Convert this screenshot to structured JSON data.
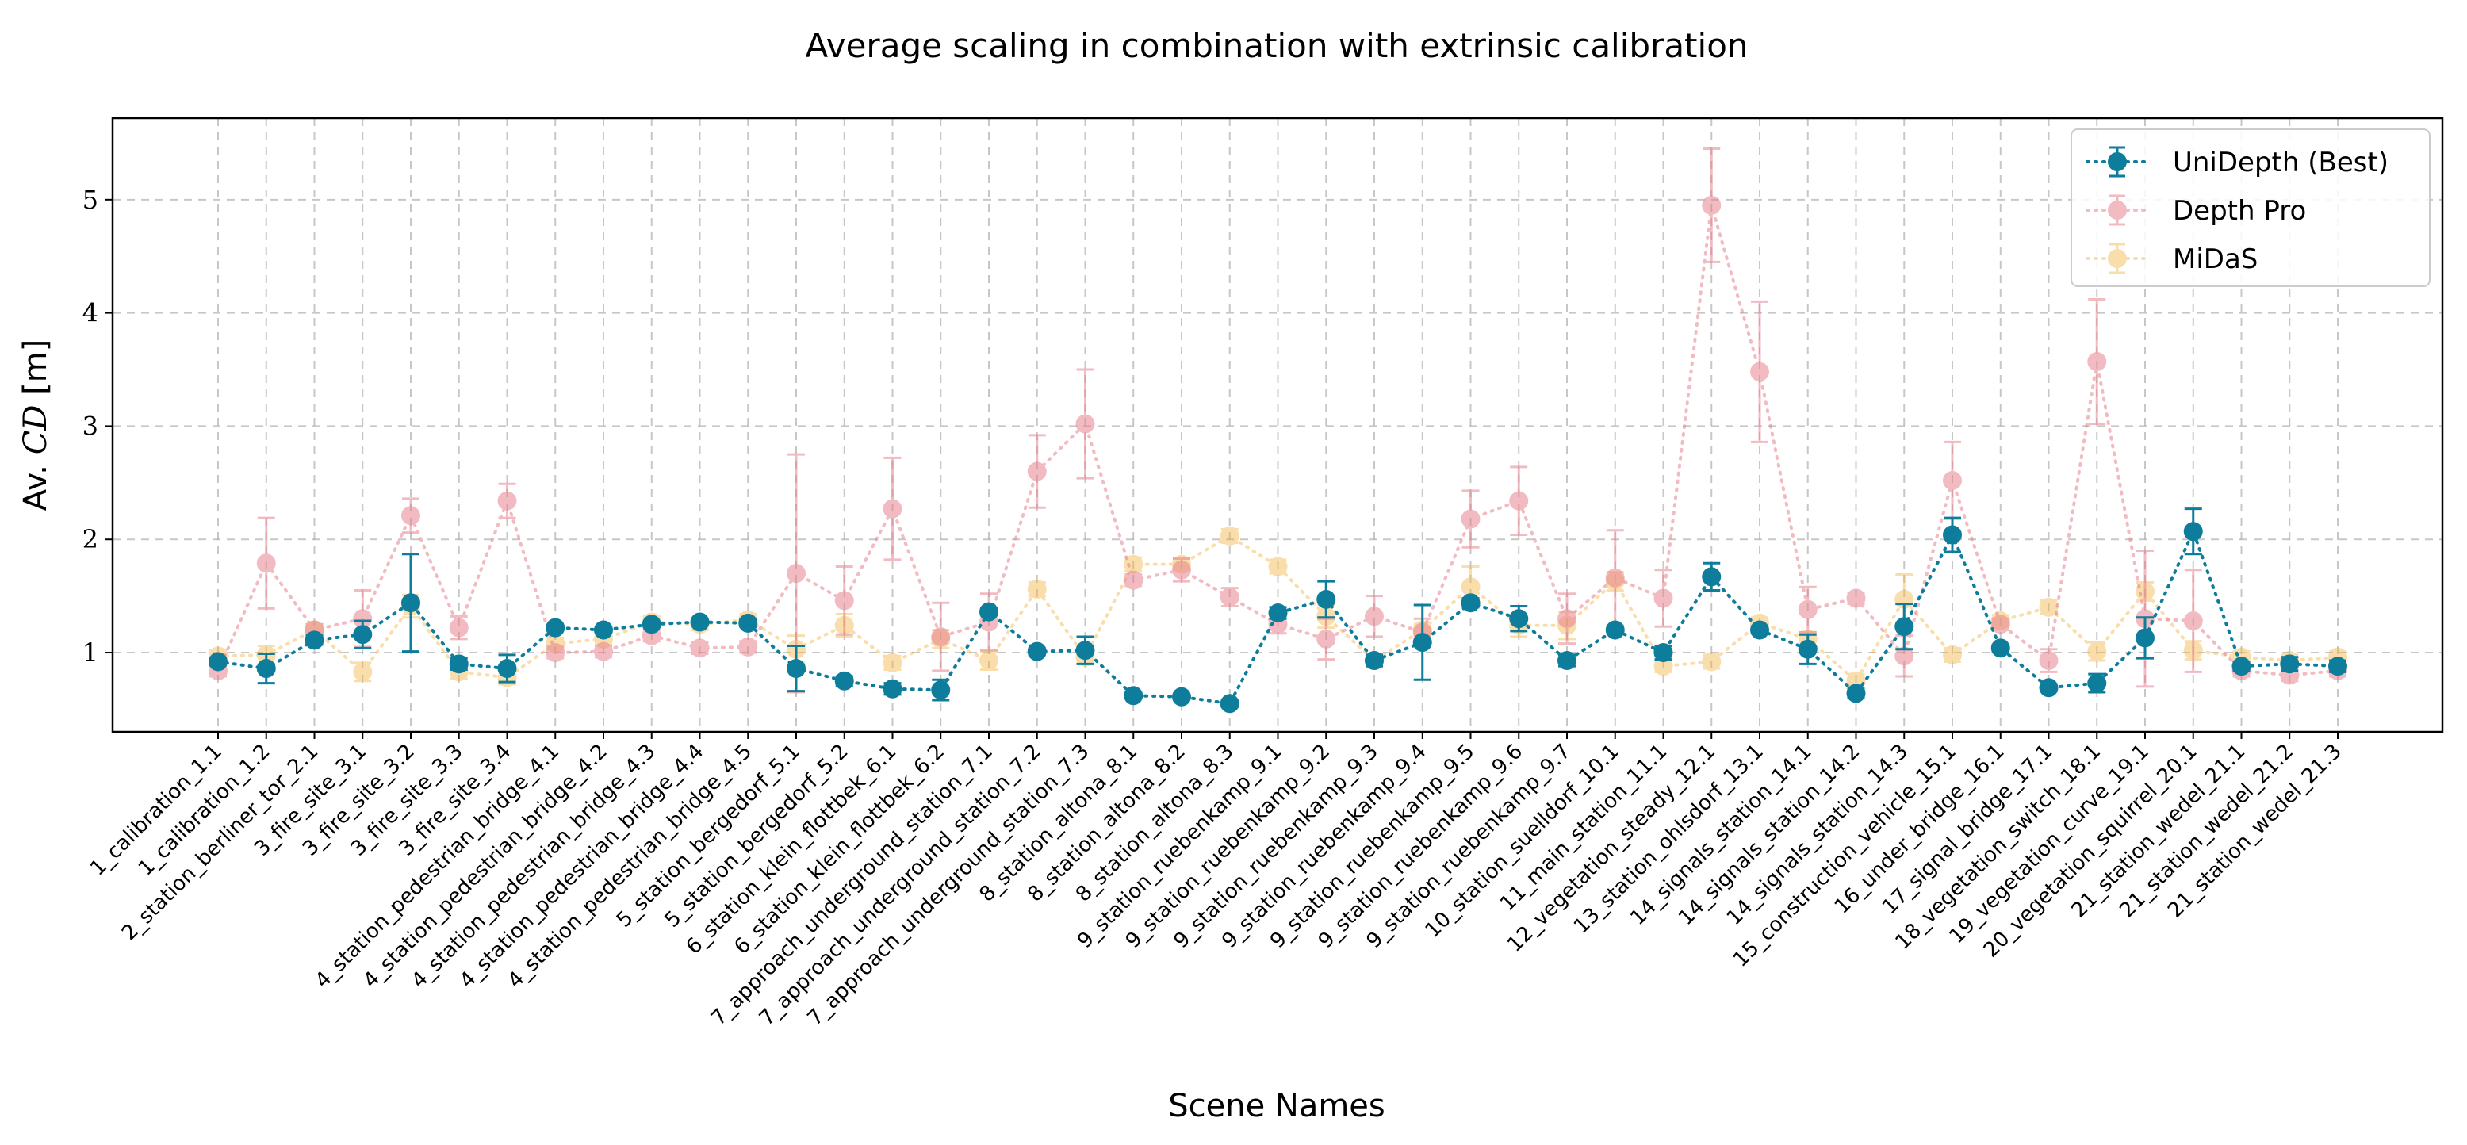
{
  "chart_data": {
    "type": "line",
    "title": "Average scaling in combination with extrinsic calibration",
    "xlabel": "Scene Names",
    "ylabel_prefix": "Av. ",
    "ylabel_var": "CD",
    "ylabel_suffix": " [m]",
    "ylim": [
      0.3,
      5.72
    ],
    "yticks": [
      1,
      2,
      3,
      4,
      5
    ],
    "grid": true,
    "legend_position": "top-right",
    "categories": [
      "1_calibration_1.1",
      "1_calibration_1.2",
      "2_station_berliner_tor_2.1",
      "3_fire_site_3.1",
      "3_fire_site_3.2",
      "3_fire_site_3.3",
      "3_fire_site_3.4",
      "4_station_pedestrian_bridge_4.1",
      "4_station_pedestrian_bridge_4.2",
      "4_station_pedestrian_bridge_4.3",
      "4_station_pedestrian_bridge_4.4",
      "4_station_pedestrian_bridge_4.5",
      "5_station_bergedorf_5.1",
      "5_station_bergedorf_5.2",
      "6_station_klein_flottbek_6.1",
      "6_station_klein_flottbek_6.2",
      "7_approach_underground_station_7.1",
      "7_approach_underground_station_7.2",
      "7_approach_underground_station_7.3",
      "8_station_altona_8.1",
      "8_station_altona_8.2",
      "8_station_altona_8.3",
      "9_station_ruebenkamp_9.1",
      "9_station_ruebenkamp_9.2",
      "9_station_ruebenkamp_9.3",
      "9_station_ruebenkamp_9.4",
      "9_station_ruebenkamp_9.5",
      "9_station_ruebenkamp_9.6",
      "9_station_ruebenkamp_9.7",
      "10_station_suelldorf_10.1",
      "11_main_station_11.1",
      "12_vegetation_steady_12.1",
      "13_station_ohlsdorf_13.1",
      "14_signals_station_14.1",
      "14_signals_station_14.2",
      "14_signals_station_14.3",
      "15_construction_vehicle_15.1",
      "16_under_bridge_16.1",
      "17_signal_bridge_17.1",
      "18_vegetation_switch_18.1",
      "19_vegetation_curve_19.1",
      "20_vegetation_squirrel_20.1",
      "21_station_wedel_21.1",
      "21_station_wedel_21.2",
      "21_station_wedel_21.3"
    ],
    "series": [
      {
        "name": "UniDepth (Best)",
        "color": "#0e7d9b",
        "opacity": 1.0,
        "values": [
          0.92,
          0.86,
          1.11,
          1.16,
          1.44,
          0.9,
          0.86,
          1.22,
          1.2,
          1.25,
          1.27,
          1.26,
          0.86,
          0.75,
          0.68,
          0.67,
          1.36,
          1.01,
          1.02,
          0.62,
          0.61,
          0.55,
          1.35,
          1.47,
          0.93,
          1.09,
          1.44,
          1.3,
          0.93,
          1.2,
          1.0,
          1.67,
          1.2,
          1.03,
          0.64,
          1.23,
          2.04,
          1.04,
          0.69,
          0.73,
          1.13,
          2.07,
          0.88,
          0.9,
          0.88
        ],
        "errors": [
          0.03,
          0.13,
          0.04,
          0.12,
          0.43,
          0.05,
          0.12,
          0.02,
          0.02,
          0.02,
          0.02,
          0.03,
          0.2,
          0.04,
          0.05,
          0.09,
          0.03,
          0.03,
          0.12,
          0.02,
          0.02,
          0.03,
          0.05,
          0.16,
          0.05,
          0.33,
          0.04,
          0.11,
          0.05,
          0.03,
          0.06,
          0.12,
          0.03,
          0.13,
          0.04,
          0.2,
          0.15,
          0.03,
          0.03,
          0.08,
          0.18,
          0.2,
          0.04,
          0.06,
          0.05
        ]
      },
      {
        "name": "Depth Pro",
        "color": "#e8828f",
        "opacity": 0.55,
        "values": [
          0.84,
          1.79,
          1.2,
          1.3,
          2.21,
          1.22,
          2.34,
          1.0,
          1.01,
          1.15,
          1.04,
          1.05,
          1.7,
          1.46,
          2.27,
          1.14,
          1.27,
          2.6,
          3.02,
          1.64,
          1.73,
          1.49,
          1.25,
          1.12,
          1.32,
          1.18,
          2.18,
          2.34,
          1.3,
          1.66,
          1.48,
          4.95,
          3.48,
          1.38,
          1.48,
          0.97,
          2.52,
          1.25,
          0.93,
          3.57,
          1.3,
          1.28,
          0.84,
          0.8,
          0.84
        ],
        "errors": [
          0.05,
          0.4,
          0.05,
          0.25,
          0.15,
          0.1,
          0.15,
          0.05,
          0.05,
          0.05,
          0.05,
          0.05,
          1.05,
          0.3,
          0.45,
          0.3,
          0.25,
          0.32,
          0.48,
          0.05,
          0.1,
          0.08,
          0.08,
          0.18,
          0.18,
          0.12,
          0.25,
          0.3,
          0.22,
          0.42,
          0.25,
          0.5,
          0.62,
          0.2,
          0.05,
          0.18,
          0.34,
          0.05,
          0.1,
          0.55,
          0.6,
          0.45,
          0.05,
          0.05,
          0.05
        ]
      },
      {
        "name": "MiDaS",
        "color": "#f3b647",
        "opacity": 0.45,
        "values": [
          0.97,
          0.98,
          1.2,
          0.83,
          1.41,
          0.83,
          0.78,
          1.08,
          1.12,
          1.27,
          1.25,
          1.29,
          1.03,
          1.24,
          0.91,
          1.12,
          0.93,
          1.56,
          0.96,
          1.78,
          1.78,
          2.03,
          1.76,
          1.32,
          0.93,
          1.2,
          1.58,
          1.24,
          1.24,
          1.63,
          0.88,
          0.92,
          1.26,
          1.12,
          0.75,
          1.47,
          0.98,
          1.28,
          1.4,
          1.01,
          1.54,
          1.02,
          0.96,
          0.93,
          0.96
        ],
        "errors": [
          0.05,
          0.08,
          0.05,
          0.08,
          0.1,
          0.06,
          0.06,
          0.05,
          0.05,
          0.05,
          0.05,
          0.05,
          0.12,
          0.1,
          0.06,
          0.08,
          0.08,
          0.06,
          0.06,
          0.06,
          0.05,
          0.06,
          0.06,
          0.1,
          0.06,
          0.05,
          0.18,
          0.1,
          0.12,
          0.08,
          0.05,
          0.06,
          0.05,
          0.06,
          0.06,
          0.22,
          0.06,
          0.05,
          0.06,
          0.08,
          0.08,
          0.08,
          0.05,
          0.05,
          0.05
        ]
      }
    ]
  }
}
